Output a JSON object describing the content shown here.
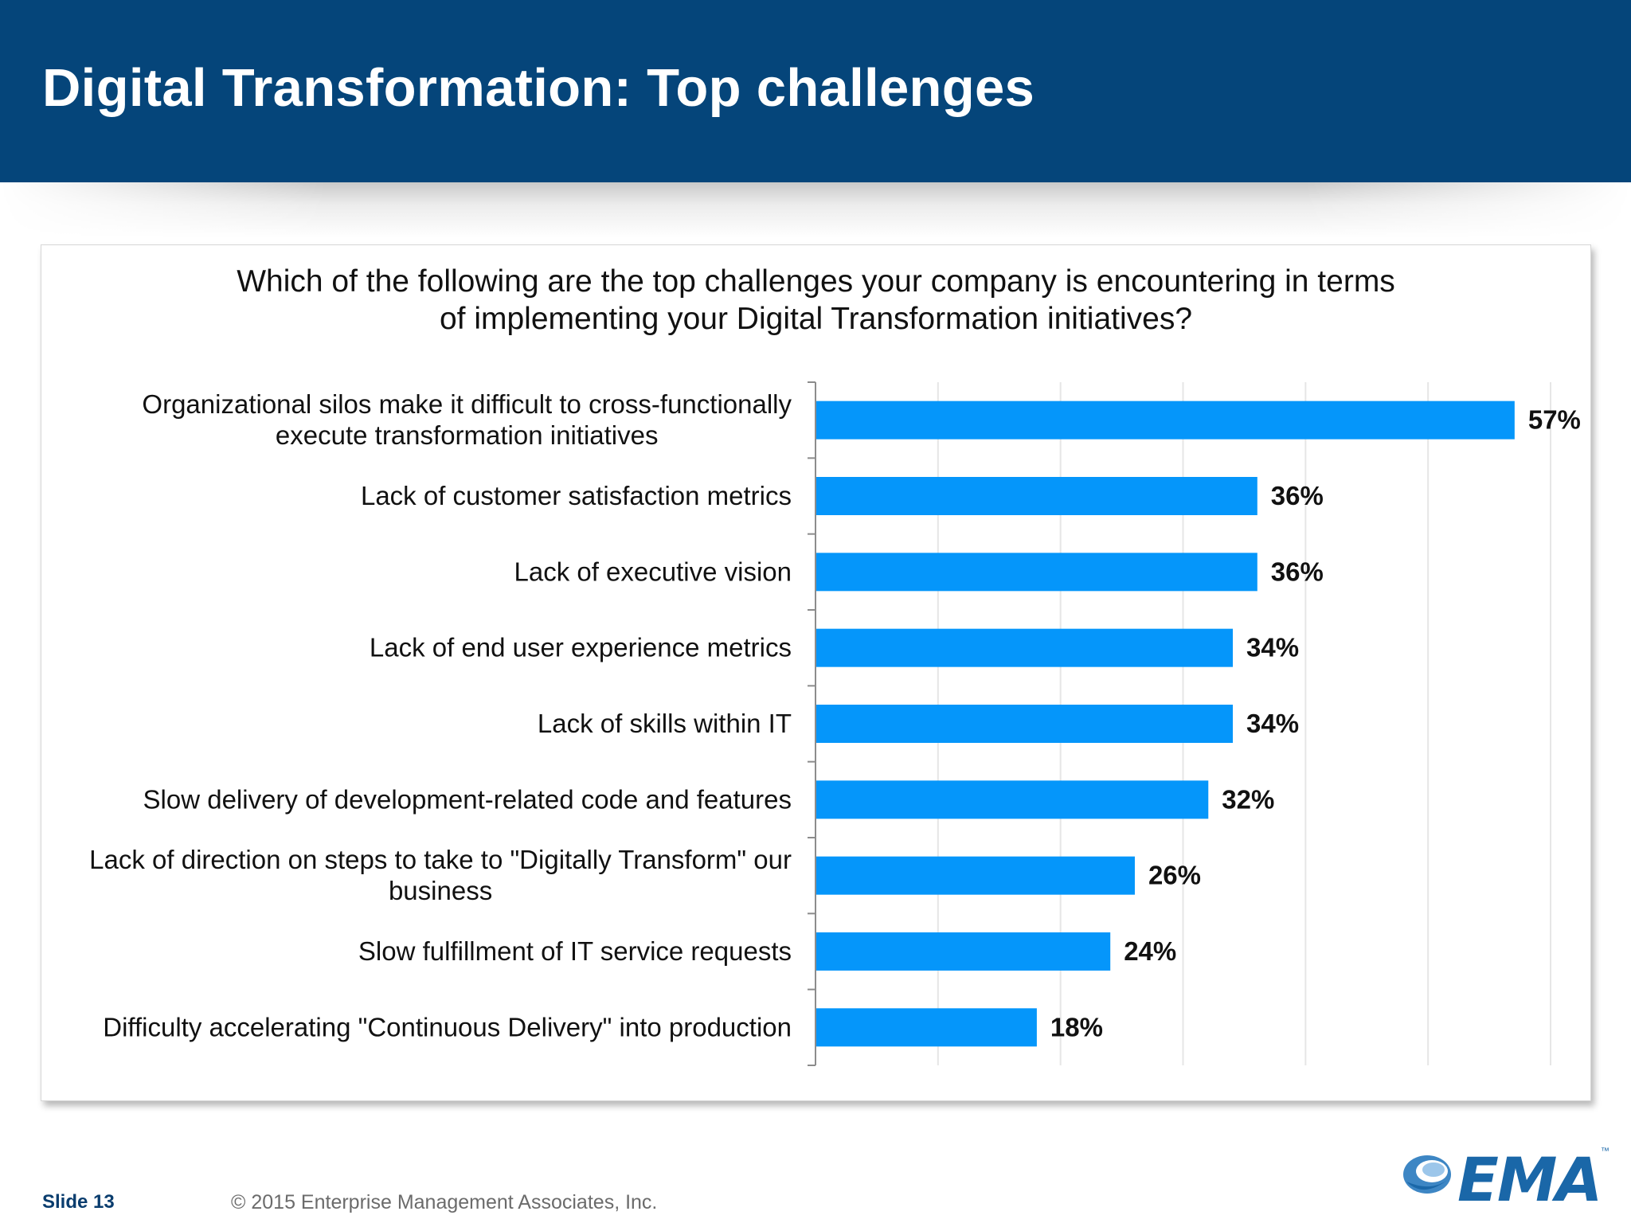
{
  "slide": {
    "title": "Digital Transformation: Top challenges",
    "slide_label": "Slide 13",
    "copyright": "© 2015 Enterprise Management Associates, Inc.",
    "logo_text": "EMA",
    "logo_tm": "™"
  },
  "chart_data": {
    "type": "bar",
    "orientation": "horizontal",
    "title_lines": [
      "Which of the following are the top challenges your company is encountering in terms",
      "of implementing your Digital Transformation initiatives?"
    ],
    "categories": [
      [
        "Organizational silos make it difficult to cross-functionally",
        "execute transformation initiatives"
      ],
      [
        "Lack of customer satisfaction metrics"
      ],
      [
        "Lack of executive vision"
      ],
      [
        "Lack of end user experience metrics"
      ],
      [
        "Lack of skills within IT"
      ],
      [
        "Slow delivery of development-related code and features"
      ],
      [
        "Lack of direction on steps to take to \"Digitally Transform\" our",
        "business"
      ],
      [
        "Slow fulfillment of IT service requests"
      ],
      [
        "Difficulty accelerating \"Continuous Delivery\" into production"
      ]
    ],
    "values": [
      57,
      36,
      36,
      34,
      34,
      32,
      26,
      24,
      18
    ],
    "value_labels": [
      "57%",
      "36%",
      "36%",
      "34%",
      "34%",
      "32%",
      "26%",
      "24%",
      "18%"
    ],
    "xlim": [
      0,
      60
    ],
    "grid": "vertical",
    "bar_color": "#0596fa"
  }
}
